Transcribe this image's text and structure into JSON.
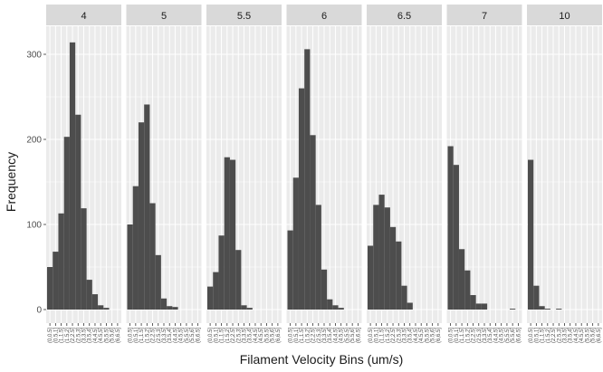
{
  "chart_data": {
    "type": "bar",
    "xlabel": "Filament Velocity Bins (um/s)",
    "ylabel": "Frequency",
    "ylim": [
      0,
      330
    ],
    "yticks": [
      0,
      100,
      200,
      300
    ],
    "grid": true,
    "colors": {
      "bar": "#4d4d4d",
      "panel_bg": "#ebebeb",
      "grid": "#ffffff",
      "strip_bg": "#d9d9d9"
    },
    "categories": [
      "(0,0.5]",
      "(0.5,1]",
      "(1,1.5]",
      "(1.5,2]",
      "(2,2.5]",
      "(2.5,3]",
      "(3,3.5]",
      "(3.5,4]",
      "(4,4.5]",
      "(4.5,5]",
      "(5,5.5]",
      "(5.5,6]",
      "(6,6.5]"
    ],
    "facets": [
      {
        "label": "4",
        "values": [
          50,
          68,
          113,
          203,
          314,
          229,
          119,
          35,
          18,
          5,
          2,
          0,
          0
        ]
      },
      {
        "label": "5",
        "values": [
          100,
          145,
          220,
          241,
          125,
          64,
          13,
          4,
          3,
          0,
          0,
          0,
          0
        ]
      },
      {
        "label": "5.5",
        "values": [
          27,
          44,
          87,
          179,
          176,
          70,
          5,
          2,
          0,
          0,
          0,
          0,
          0
        ]
      },
      {
        "label": "6",
        "values": [
          93,
          155,
          260,
          306,
          205,
          123,
          47,
          12,
          5,
          2,
          0,
          0,
          0
        ]
      },
      {
        "label": "6.5",
        "values": [
          75,
          123,
          135,
          120,
          97,
          80,
          28,
          8,
          0,
          0,
          0,
          0,
          0
        ]
      },
      {
        "label": "7",
        "values": [
          192,
          170,
          71,
          46,
          17,
          7,
          7,
          0,
          0,
          0,
          0,
          1,
          0
        ]
      },
      {
        "label": "10",
        "values": [
          176,
          28,
          4,
          1,
          0,
          1,
          0,
          0,
          0,
          0,
          0,
          0,
          0
        ]
      }
    ]
  }
}
